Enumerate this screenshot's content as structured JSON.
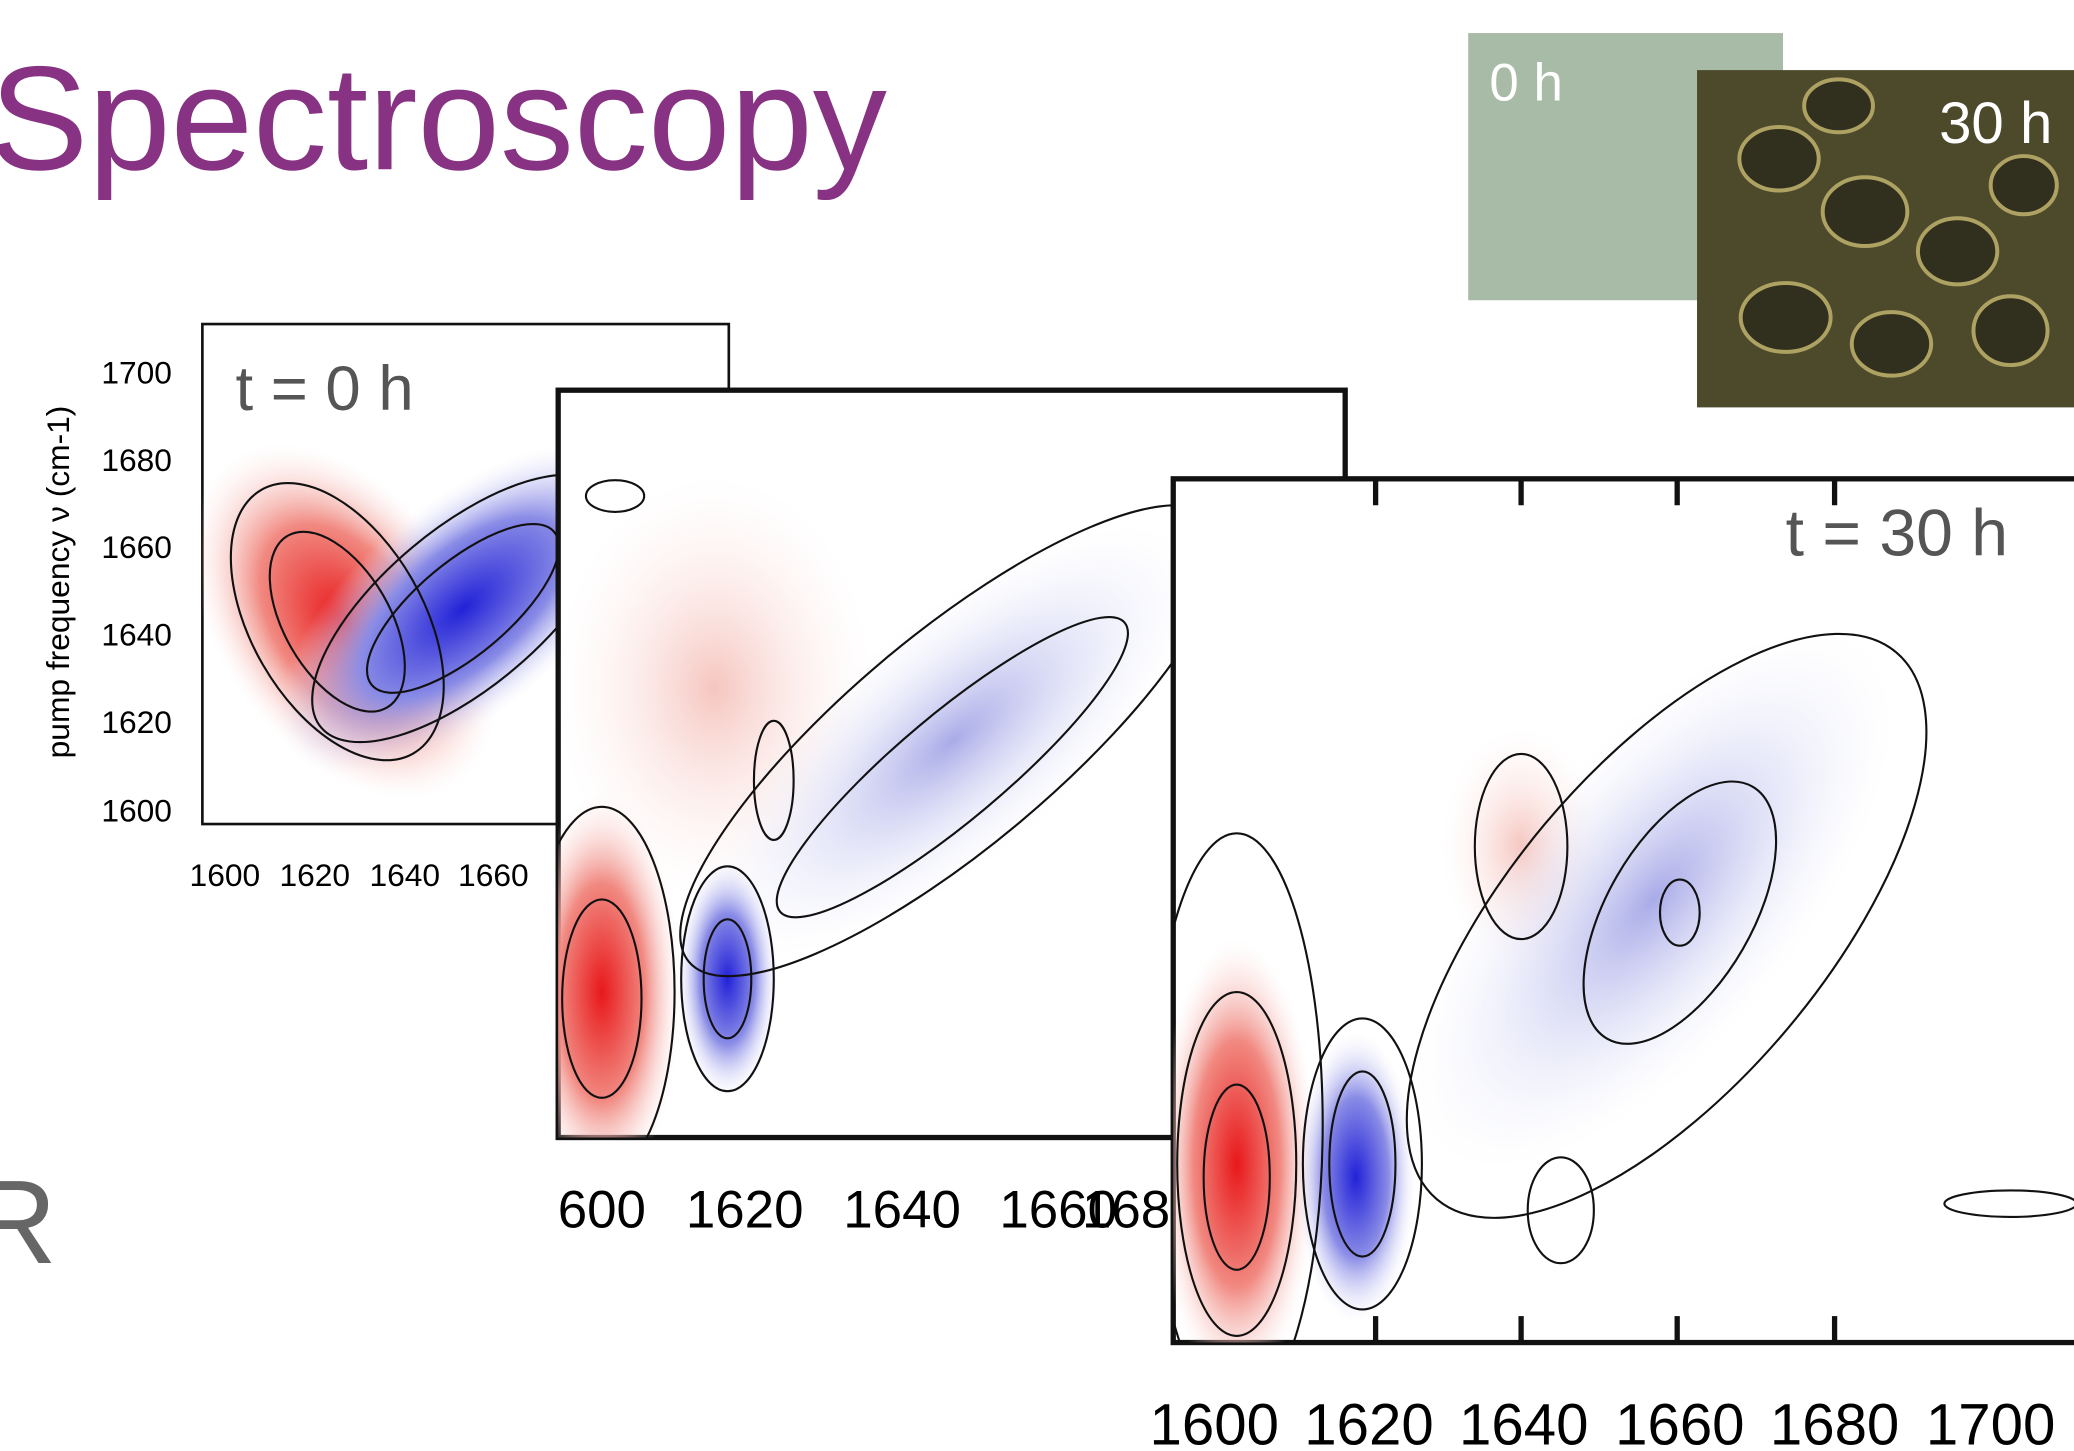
{
  "title": "Spectroscopy",
  "photos": [
    {
      "label": "0 h"
    },
    {
      "label": "30 h"
    }
  ],
  "panels": [
    {
      "time_label": "t = 0 h",
      "y_axis_label": "pump frequency ν (cm-1)",
      "y_ticks": [
        1700,
        1680,
        1660,
        1640,
        1620,
        1600
      ],
      "x_ticks": [
        1600,
        1620,
        1640,
        1660
      ]
    },
    {
      "x_ticks": [
        "600",
        1620,
        1640,
        1660,
        "168"
      ]
    },
    {
      "time_label": "t = 30 h",
      "x_ticks": [
        1600,
        1620,
        1640,
        1660,
        1680,
        1700
      ]
    }
  ],
  "edge_text": "R"
}
